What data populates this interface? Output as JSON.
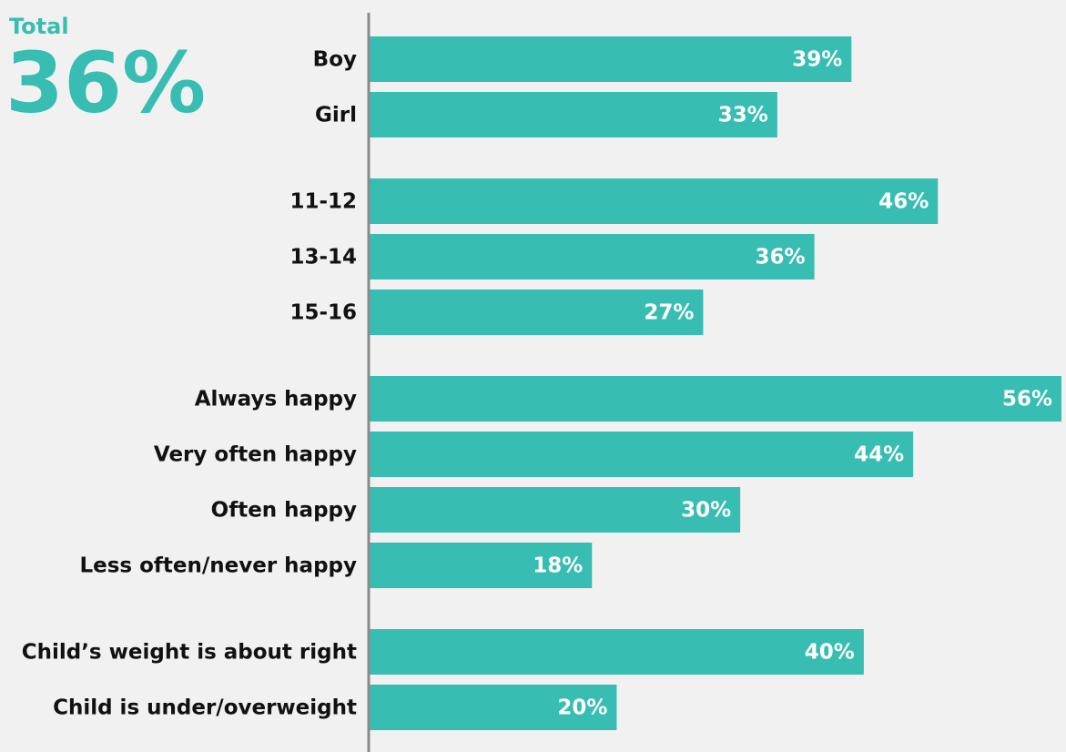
{
  "chart_data": {
    "type": "bar",
    "orientation": "horizontal",
    "total": {
      "label": "Total",
      "value": 36,
      "value_label": "36%"
    },
    "categories": [
      "Boy",
      "Girl",
      null,
      "11-12",
      "13-14",
      "15-16",
      null,
      "Always happy",
      "Very often happy",
      "Often happy",
      "Less often/never happy",
      null,
      "Child’s weight is about right",
      "Child is under/overweight"
    ],
    "values": [
      39,
      33,
      null,
      46,
      36,
      27,
      null,
      56,
      44,
      30,
      18,
      null,
      40,
      20
    ],
    "value_labels": [
      "39%",
      "33%",
      null,
      "46%",
      "36%",
      "27%",
      null,
      "56%",
      "44%",
      "30%",
      "18%",
      null,
      "40%",
      "20%"
    ],
    "color": "#37bdb1",
    "xlim": [
      0,
      56
    ]
  }
}
